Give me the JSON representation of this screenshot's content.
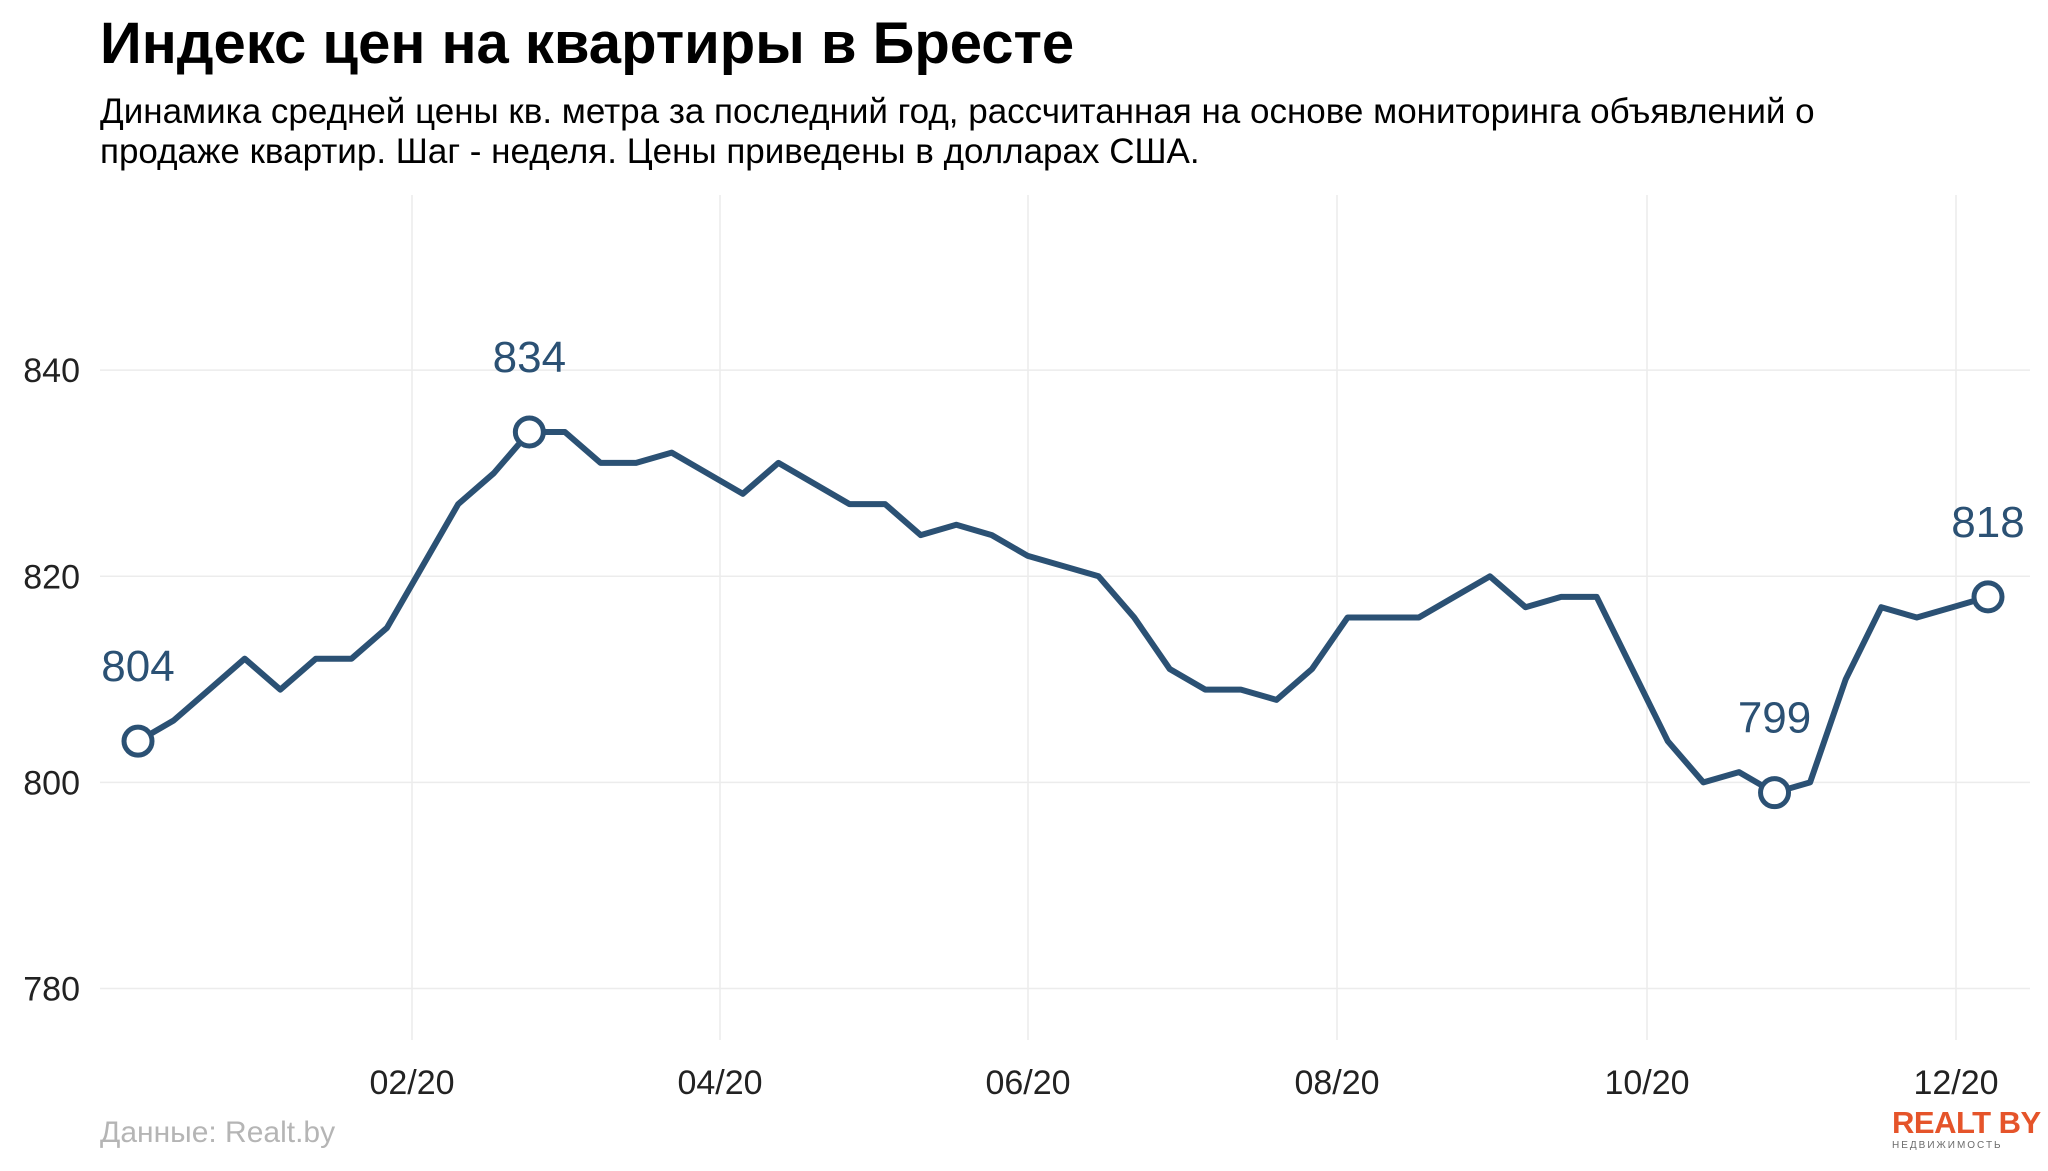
{
  "title": "Индекс цен на квартиры в Бресте",
  "subtitle": "Динамика средней цены кв. метра за последний год, рассчитанная на основе мониторинга объявлений о продаже квартир. Шаг - неделя. Цены приведены в долларах США.",
  "source": "Данные: Realt.by",
  "logo": {
    "main": "REALT BY",
    "sub": "НЕДВИЖИМОСТЬ",
    "color": "#e5542a"
  },
  "chart_data": {
    "type": "line",
    "line_color": "#2b5174",
    "grid": true,
    "ylim": [
      775,
      857
    ],
    "yticks": [
      780,
      800,
      820,
      840
    ],
    "xticks": [
      "02/20",
      "04/20",
      "06/20",
      "08/20",
      "10/20",
      "12/20"
    ],
    "series": [
      {
        "values": [
          804,
          806,
          809,
          812,
          809,
          812,
          812,
          815,
          821,
          827,
          830,
          834,
          834,
          831,
          831,
          832,
          830,
          828,
          831,
          829,
          827,
          827,
          824,
          825,
          824,
          822,
          821,
          820,
          816,
          811,
          809,
          809,
          808,
          811,
          816,
          816,
          816,
          818,
          820,
          817,
          818,
          818,
          811,
          804,
          800,
          801,
          799,
          800,
          810,
          817,
          816,
          817,
          818
        ]
      }
    ],
    "annotations": [
      {
        "label": "804",
        "value": 804
      },
      {
        "label": "834",
        "value": 834
      },
      {
        "label": "799",
        "value": 799
      },
      {
        "label": "818",
        "value": 818
      }
    ]
  }
}
